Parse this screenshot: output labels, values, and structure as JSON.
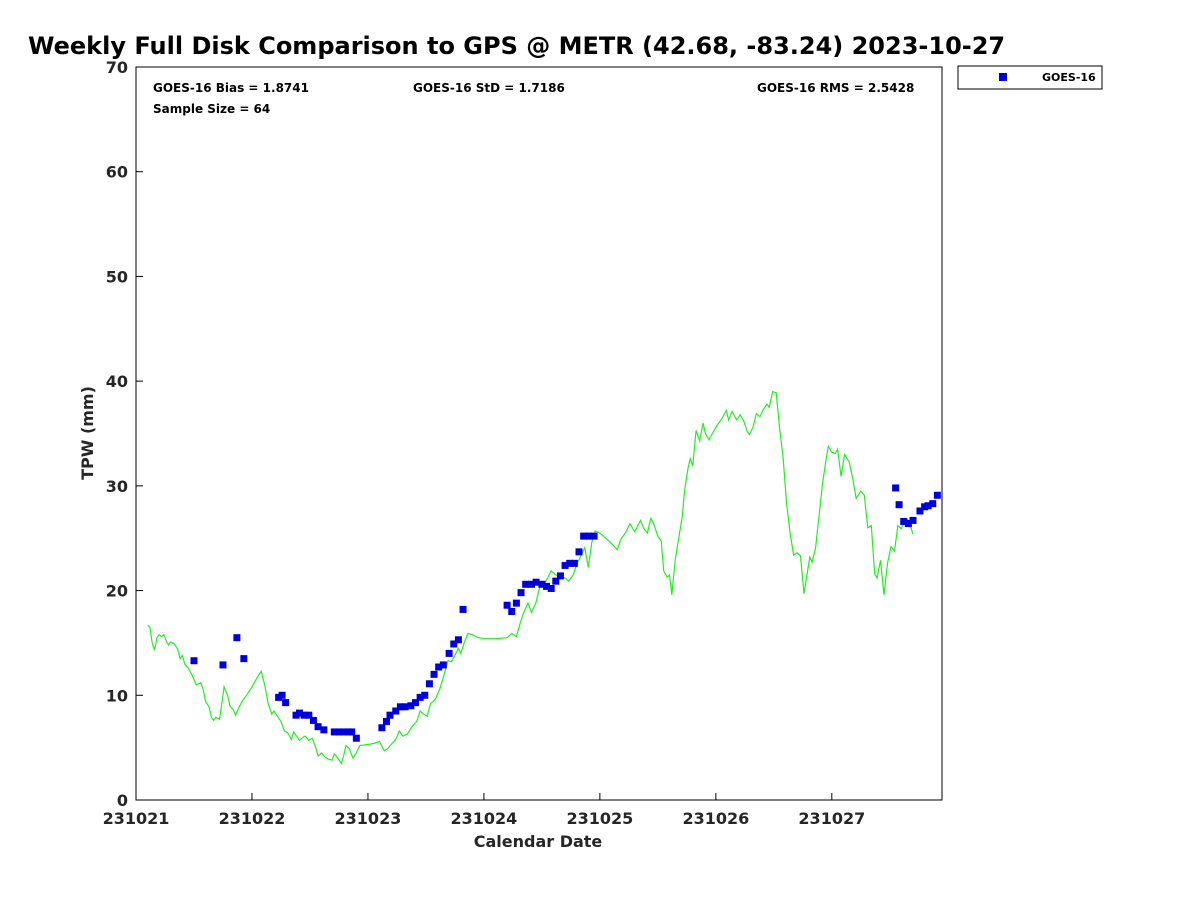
{
  "chart_data": {
    "type": "scatter",
    "title": "Weekly Full Disk Comparison to GPS @ METR (42.68, -83.24) 2023-10-27",
    "xlabel": "Calendar Date",
    "ylabel": "TPW (mm)",
    "xlim": [
      0,
      6.95
    ],
    "ylim": [
      0,
      70
    ],
    "x_ticks": [
      0,
      1,
      2,
      3,
      4,
      5,
      6
    ],
    "x_tick_labels": [
      "231021",
      "231022",
      "231023",
      "231024",
      "231025",
      "231026",
      "231027"
    ],
    "y_ticks": [
      0,
      10,
      20,
      30,
      40,
      50,
      60,
      70
    ],
    "y_tick_labels": [
      "0",
      "10",
      "20",
      "30",
      "40",
      "50",
      "60",
      "70"
    ],
    "stats": {
      "bias": "GOES-16 Bias = 1.8741",
      "std": "GOES-16 StD = 1.7186",
      "rms": "GOES-16 RMS = 2.5428",
      "sample": "Sample Size = 64"
    },
    "legend": {
      "label": "GOES-16",
      "position": "top-right"
    },
    "colors": {
      "goes": "#0000dd",
      "gps": "#22ee22"
    },
    "series": [
      {
        "name": "GOES-16",
        "kind": "scatter",
        "x": [
          0.5,
          0.75,
          0.87,
          0.93,
          1.23,
          1.26,
          1.29,
          1.38,
          1.41,
          1.45,
          1.49,
          1.53,
          1.57,
          1.62,
          1.71,
          1.75,
          1.79,
          1.83,
          1.86,
          1.9,
          2.12,
          2.16,
          2.19,
          2.24,
          2.28,
          2.32,
          2.37,
          2.41,
          2.45,
          2.49,
          2.53,
          2.57,
          2.61,
          2.65,
          2.7,
          2.74,
          2.78,
          2.82,
          3.2,
          3.24,
          3.28,
          3.32,
          3.36,
          3.41,
          3.45,
          3.5,
          3.54,
          3.58,
          3.62,
          3.66,
          3.7,
          3.74,
          3.78,
          3.82,
          3.86,
          3.91,
          3.95,
          6.55,
          6.58,
          6.62,
          6.66,
          6.7,
          6.76,
          6.8,
          6.83,
          6.87,
          6.91
        ],
        "y": [
          13.3,
          12.9,
          15.5,
          13.5,
          9.8,
          10.0,
          9.3,
          8.1,
          8.3,
          8.1,
          8.1,
          7.6,
          7.0,
          6.7,
          6.5,
          6.5,
          6.5,
          6.5,
          6.5,
          5.9,
          6.9,
          7.5,
          8.1,
          8.5,
          8.9,
          8.9,
          9.0,
          9.3,
          9.8,
          10.0,
          11.1,
          12.0,
          12.7,
          12.9,
          14.0,
          14.9,
          15.3,
          18.2,
          18.6,
          18.0,
          18.8,
          19.8,
          20.6,
          20.6,
          20.8,
          20.6,
          20.4,
          20.2,
          20.9,
          21.4,
          22.4,
          22.6,
          22.6,
          23.7,
          25.2,
          25.2,
          25.2,
          29.8,
          28.2,
          26.6,
          26.4,
          26.7,
          27.6,
          28.0,
          28.1,
          28.3,
          29.1
        ]
      },
      {
        "name": "GPS",
        "kind": "line",
        "points": [
          [
            0.1,
            16.7
          ],
          [
            0.12,
            16.5
          ],
          [
            0.14,
            15.0
          ],
          [
            0.16,
            14.3
          ],
          [
            0.18,
            15.5
          ],
          [
            0.2,
            15.8
          ],
          [
            0.22,
            15.6
          ],
          [
            0.24,
            15.8
          ],
          [
            0.26,
            15.2
          ],
          [
            0.28,
            14.8
          ],
          [
            0.3,
            15.1
          ],
          [
            0.33,
            14.9
          ],
          [
            0.36,
            14.4
          ],
          [
            0.38,
            13.5
          ],
          [
            0.4,
            13.8
          ],
          [
            0.42,
            13.0
          ],
          [
            0.45,
            12.6
          ],
          [
            0.48,
            12.0
          ],
          [
            0.52,
            11.0
          ],
          [
            0.56,
            11.2
          ],
          [
            0.58,
            10.5
          ],
          [
            0.6,
            9.4
          ],
          [
            0.63,
            8.9
          ],
          [
            0.65,
            7.9
          ],
          [
            0.67,
            7.6
          ],
          [
            0.69,
            7.9
          ],
          [
            0.72,
            7.7
          ],
          [
            0.74,
            9.2
          ],
          [
            0.76,
            10.8
          ],
          [
            0.79,
            10.0
          ],
          [
            0.81,
            9.0
          ],
          [
            0.84,
            8.6
          ],
          [
            0.86,
            8.1
          ],
          [
            0.89,
            8.9
          ],
          [
            0.92,
            9.5
          ],
          [
            0.96,
            10.1
          ],
          [
            1.0,
            10.8
          ],
          [
            1.04,
            11.6
          ],
          [
            1.08,
            12.3
          ],
          [
            1.11,
            11.0
          ],
          [
            1.14,
            9.2
          ],
          [
            1.17,
            8.2
          ],
          [
            1.19,
            8.5
          ],
          [
            1.22,
            8.0
          ],
          [
            1.25,
            7.5
          ],
          [
            1.28,
            6.6
          ],
          [
            1.31,
            6.4
          ],
          [
            1.34,
            5.8
          ],
          [
            1.36,
            6.5
          ],
          [
            1.39,
            6.0
          ],
          [
            1.41,
            5.7
          ],
          [
            1.44,
            6.0
          ],
          [
            1.46,
            6.1
          ],
          [
            1.49,
            5.7
          ],
          [
            1.52,
            5.9
          ],
          [
            1.55,
            5.0
          ],
          [
            1.57,
            4.2
          ],
          [
            1.6,
            4.5
          ],
          [
            1.63,
            4.1
          ],
          [
            1.66,
            3.9
          ],
          [
            1.69,
            3.8
          ],
          [
            1.71,
            4.4
          ],
          [
            1.74,
            4.0
          ],
          [
            1.77,
            3.5
          ],
          [
            1.79,
            4.2
          ],
          [
            1.81,
            5.2
          ],
          [
            1.84,
            4.9
          ],
          [
            1.87,
            4.0
          ],
          [
            1.9,
            4.5
          ],
          [
            1.93,
            5.2
          ],
          [
            2.0,
            5.3
          ],
          [
            2.05,
            5.4
          ],
          [
            2.1,
            5.6
          ],
          [
            2.14,
            4.7
          ],
          [
            2.17,
            4.9
          ],
          [
            2.2,
            5.3
          ],
          [
            2.24,
            5.8
          ],
          [
            2.27,
            6.6
          ],
          [
            2.3,
            6.1
          ],
          [
            2.34,
            6.3
          ],
          [
            2.38,
            7.0
          ],
          [
            2.42,
            7.5
          ],
          [
            2.45,
            8.5
          ],
          [
            2.48,
            8.2
          ],
          [
            2.51,
            8.0
          ],
          [
            2.54,
            9.2
          ],
          [
            2.58,
            9.6
          ],
          [
            2.62,
            10.6
          ],
          [
            2.66,
            12.1
          ],
          [
            2.69,
            13.3
          ],
          [
            2.72,
            13.2
          ],
          [
            2.75,
            13.8
          ],
          [
            2.78,
            14.5
          ],
          [
            2.8,
            14.0
          ],
          [
            2.83,
            15.0
          ],
          [
            2.86,
            15.9
          ],
          [
            2.9,
            15.8
          ],
          [
            2.95,
            15.5
          ],
          [
            3.0,
            15.4
          ],
          [
            3.1,
            15.4
          ],
          [
            3.2,
            15.5
          ],
          [
            3.24,
            15.9
          ],
          [
            3.28,
            15.6
          ],
          [
            3.31,
            16.8
          ],
          [
            3.34,
            17.8
          ],
          [
            3.38,
            18.8
          ],
          [
            3.41,
            17.9
          ],
          [
            3.45,
            18.9
          ],
          [
            3.48,
            20.3
          ],
          [
            3.52,
            20.6
          ],
          [
            3.55,
            21.2
          ],
          [
            3.58,
            21.9
          ],
          [
            3.62,
            21.5
          ],
          [
            3.66,
            21.3
          ],
          [
            3.7,
            21.2
          ],
          [
            3.73,
            20.9
          ],
          [
            3.77,
            21.5
          ],
          [
            3.8,
            22.5
          ],
          [
            3.84,
            23.4
          ],
          [
            3.87,
            24.1
          ],
          [
            3.9,
            22.2
          ],
          [
            3.93,
            24.6
          ],
          [
            3.96,
            25.7
          ],
          [
            4.0,
            25.5
          ],
          [
            4.05,
            25.0
          ],
          [
            4.1,
            24.5
          ],
          [
            4.15,
            23.9
          ],
          [
            4.18,
            24.9
          ],
          [
            4.22,
            25.5
          ],
          [
            4.26,
            26.4
          ],
          [
            4.3,
            25.6
          ],
          [
            4.35,
            26.7
          ],
          [
            4.38,
            25.9
          ],
          [
            4.41,
            25.5
          ],
          [
            4.44,
            26.9
          ],
          [
            4.46,
            26.5
          ],
          [
            4.5,
            25.2
          ],
          [
            4.53,
            24.7
          ],
          [
            4.55,
            21.9
          ],
          [
            4.58,
            21.3
          ],
          [
            4.6,
            21.5
          ],
          [
            4.62,
            19.6
          ],
          [
            4.65,
            23.0
          ],
          [
            4.68,
            25.0
          ],
          [
            4.71,
            27.0
          ],
          [
            4.73,
            29.5
          ],
          [
            4.76,
            31.7
          ],
          [
            4.78,
            32.6
          ],
          [
            4.8,
            31.9
          ],
          [
            4.83,
            35.3
          ],
          [
            4.86,
            34.3
          ],
          [
            4.89,
            36.0
          ],
          [
            4.91,
            35.0
          ],
          [
            4.94,
            34.4
          ],
          [
            5.0,
            35.6
          ],
          [
            5.05,
            36.4
          ],
          [
            5.09,
            37.2
          ],
          [
            5.11,
            36.3
          ],
          [
            5.14,
            37.1
          ],
          [
            5.18,
            36.3
          ],
          [
            5.21,
            36.8
          ],
          [
            5.24,
            36.2
          ],
          [
            5.27,
            35.2
          ],
          [
            5.29,
            34.9
          ],
          [
            5.32,
            35.6
          ],
          [
            5.35,
            36.9
          ],
          [
            5.38,
            36.6
          ],
          [
            5.41,
            37.3
          ],
          [
            5.44,
            37.8
          ],
          [
            5.46,
            37.5
          ],
          [
            5.49,
            39.0
          ],
          [
            5.52,
            38.9
          ],
          [
            5.55,
            35.5
          ],
          [
            5.58,
            32.7
          ],
          [
            5.61,
            28.3
          ],
          [
            5.64,
            25.5
          ],
          [
            5.67,
            23.4
          ],
          [
            5.7,
            23.6
          ],
          [
            5.73,
            23.3
          ],
          [
            5.76,
            19.7
          ],
          [
            5.78,
            21.1
          ],
          [
            5.81,
            23.2
          ],
          [
            5.83,
            22.7
          ],
          [
            5.86,
            24.1
          ],
          [
            5.89,
            27.2
          ],
          [
            5.92,
            30.2
          ],
          [
            5.95,
            32.5
          ],
          [
            5.97,
            33.8
          ],
          [
            6.0,
            33.2
          ],
          [
            6.03,
            33.1
          ],
          [
            6.05,
            33.5
          ],
          [
            6.08,
            30.9
          ],
          [
            6.11,
            33.0
          ],
          [
            6.15,
            32.3
          ],
          [
            6.18,
            30.7
          ],
          [
            6.21,
            28.8
          ],
          [
            6.25,
            29.5
          ],
          [
            6.28,
            29.1
          ],
          [
            6.31,
            26.0
          ],
          [
            6.34,
            26.2
          ],
          [
            6.37,
            21.6
          ],
          [
            6.39,
            21.2
          ],
          [
            6.42,
            22.9
          ],
          [
            6.45,
            19.6
          ],
          [
            6.48,
            22.6
          ],
          [
            6.51,
            24.2
          ],
          [
            6.54,
            23.8
          ],
          [
            6.57,
            26.2
          ],
          [
            6.6,
            25.9
          ],
          [
            6.63,
            26.9
          ],
          [
            6.66,
            26.7
          ],
          [
            6.7,
            25.4
          ]
        ]
      }
    ]
  }
}
